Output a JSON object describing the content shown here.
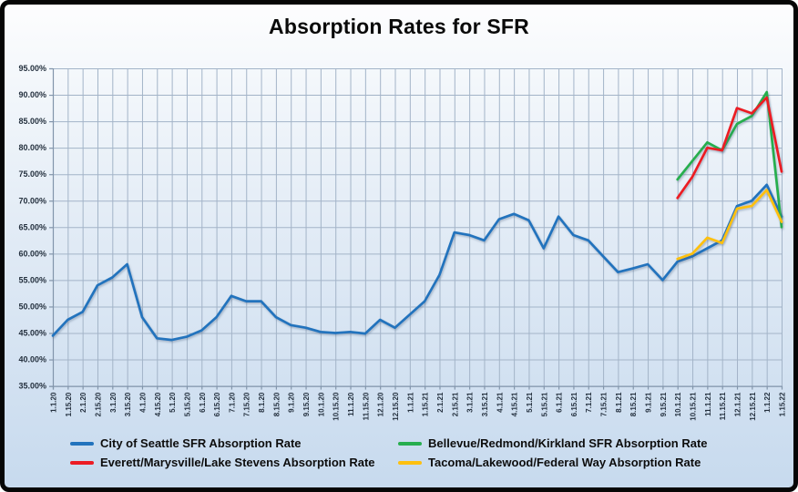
{
  "title": "Absorption Rates for SFR",
  "chart_data": {
    "type": "line",
    "grid": true,
    "legend_position": "bottom",
    "ylabel": "",
    "xlabel": "",
    "y_axis": {
      "min": 35,
      "max": 95,
      "step": 5
    },
    "y_tick_labels": [
      "95.00%",
      "90.00%",
      "85.00%",
      "80.00%",
      "75.00%",
      "70.00%",
      "65.00%",
      "60.00%",
      "55.00%",
      "50.00%",
      "45.00%",
      "40.00%",
      "35.00%"
    ],
    "x_labels": [
      "1.1.20",
      "1.15.20",
      "2.1.20",
      "2.15.20",
      "3.1.20",
      "3.15.20",
      "4.1.20",
      "4.15.20",
      "5.1.20",
      "5.15.20",
      "6.1.20",
      "6.15.20",
      "7.1.20",
      "7.15.20",
      "8.1.20",
      "8.15.20",
      "9.1.20",
      "9.15.20",
      "10.1.20",
      "10.15.20",
      "11.1.20",
      "11.15.20",
      "12.1.20",
      "12.15.20",
      "1.1.21",
      "1.15.21",
      "2.1.21",
      "2.15.21",
      "3.1.21",
      "3.15.21",
      "4.1.21",
      "4.15.21",
      "5.1.21",
      "5.15.21",
      "6.1.21",
      "6.15.21",
      "7.1.21",
      "7.15.21",
      "8.1.21",
      "8.15.21",
      "9.1.21",
      "9.15.21",
      "10.1.21",
      "10.15.21",
      "11.1.21",
      "11.15.21",
      "12.1.21",
      "12.15.21",
      "1.1.22",
      "1.15.22"
    ],
    "series": [
      {
        "name": "City of Seattle SFR Absorption Rate",
        "color": "#2273bd",
        "values": [
          44.5,
          47.5,
          49,
          54,
          55.5,
          58,
          48,
          44,
          43.7,
          44.3,
          45.5,
          48,
          52,
          51,
          51,
          48,
          46.5,
          46,
          45.2,
          45,
          45.2,
          44.9,
          47.5,
          46,
          48.5,
          51,
          56,
          64,
          63.5,
          62.5,
          66.5,
          67.5,
          66.3,
          61,
          67,
          63.5,
          62.5,
          59.5,
          56.5,
          57.2,
          58,
          55,
          58.5,
          59.5,
          61,
          62.5,
          69,
          70,
          73,
          67
        ]
      },
      {
        "name": "Bellevue/Redmond/Kirkland SFR Absorption Rate",
        "color": "#27ae4e",
        "values": [
          null,
          null,
          null,
          null,
          null,
          null,
          null,
          null,
          null,
          null,
          null,
          null,
          null,
          null,
          null,
          null,
          null,
          null,
          null,
          null,
          null,
          null,
          null,
          null,
          null,
          null,
          null,
          null,
          null,
          null,
          null,
          null,
          null,
          null,
          null,
          null,
          null,
          null,
          null,
          null,
          null,
          null,
          74,
          77.5,
          81,
          79.5,
          84.5,
          86,
          90.5,
          65
        ]
      },
      {
        "name": "Everett/Marysville/Lake Stevens Absorption Rate",
        "color": "#ec1c24",
        "values": [
          null,
          null,
          null,
          null,
          null,
          null,
          null,
          null,
          null,
          null,
          null,
          null,
          null,
          null,
          null,
          null,
          null,
          null,
          null,
          null,
          null,
          null,
          null,
          null,
          null,
          null,
          null,
          null,
          null,
          null,
          null,
          null,
          null,
          null,
          null,
          null,
          null,
          null,
          null,
          null,
          null,
          null,
          70.5,
          74.5,
          80,
          79.5,
          87.5,
          86.5,
          89.5,
          75.5
        ]
      },
      {
        "name": "Tacoma/Lakewood/Federal Way Absorption Rate",
        "color": "#fdc010",
        "values": [
          null,
          null,
          null,
          null,
          null,
          null,
          null,
          null,
          null,
          null,
          null,
          null,
          null,
          null,
          null,
          null,
          null,
          null,
          null,
          null,
          null,
          null,
          null,
          null,
          null,
          null,
          null,
          null,
          null,
          null,
          null,
          null,
          null,
          null,
          null,
          null,
          null,
          null,
          null,
          null,
          null,
          null,
          59,
          60,
          63,
          62,
          68.5,
          69,
          72,
          66
        ]
      }
    ]
  },
  "colors": {
    "gridline": "#a3b4c8",
    "axis": "#8295ab",
    "tick_text": "#24303e"
  }
}
